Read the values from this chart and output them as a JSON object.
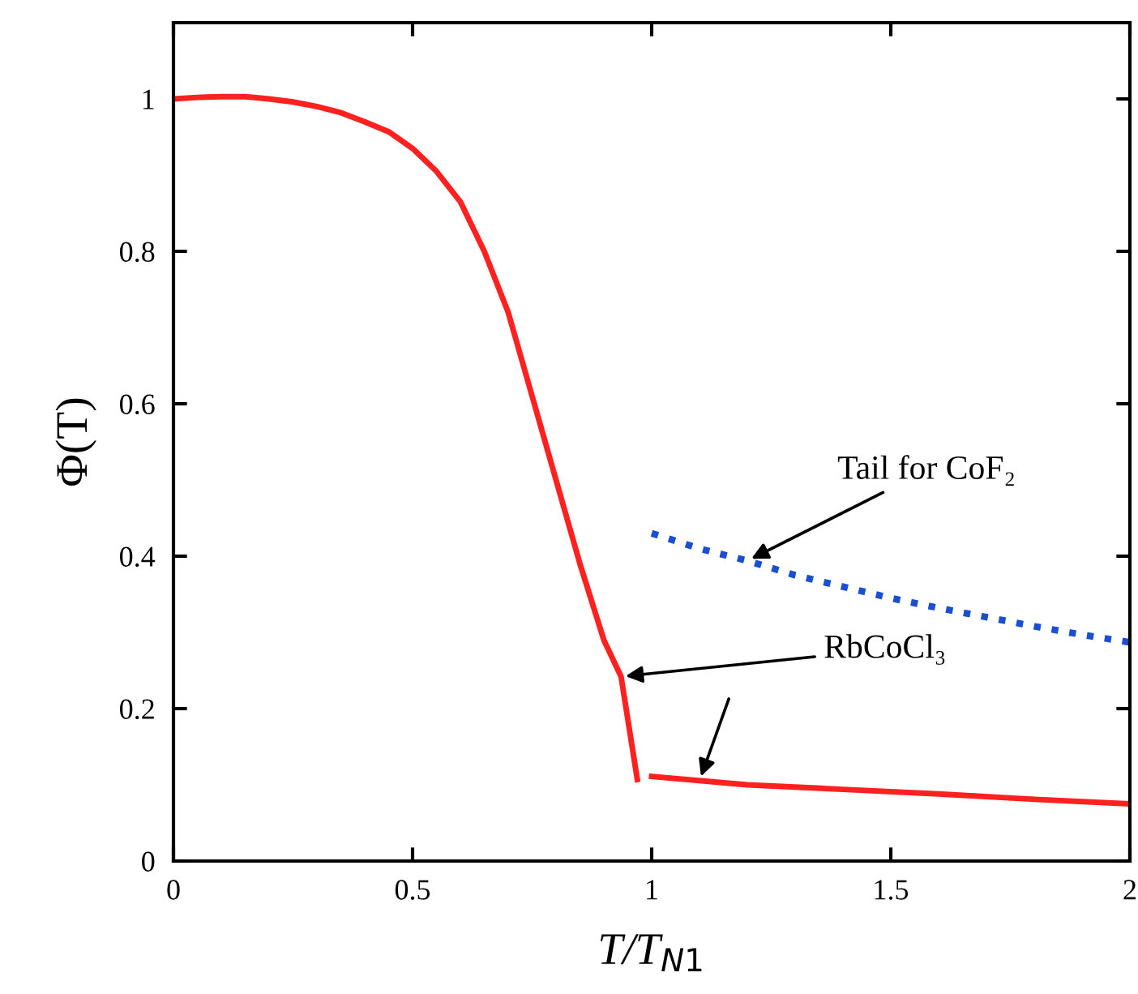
{
  "chart_data": {
    "type": "line",
    "xlabel": "T/T$_{N1}$",
    "ylabel": "Φ(T)",
    "xlim": [
      0,
      2
    ],
    "ylim": [
      0,
      1.1
    ],
    "xticks": [
      0,
      0.5,
      1,
      1.5,
      2
    ],
    "yticks": [
      0,
      0.2,
      0.4,
      0.6,
      0.8,
      1
    ],
    "grid": false,
    "series": [
      {
        "color": "#ff2020",
        "line_style": "solid",
        "x": [
          0,
          0.05,
          0.1,
          0.15,
          0.2,
          0.25,
          0.3,
          0.35,
          0.4,
          0.45,
          0.5,
          0.55,
          0.6,
          0.65,
          0.7,
          0.75,
          0.8,
          0.85,
          0.9,
          0.936,
          0.97
        ],
        "values": [
          1.0,
          1.002,
          1.003,
          1.003,
          1.0,
          0.996,
          0.99,
          0.982,
          0.97,
          0.957,
          0.935,
          0.905,
          0.865,
          0.8,
          0.72,
          0.61,
          0.5,
          0.39,
          0.29,
          0.242,
          0.107
        ]
      },
      {
        "color": "#ff2020",
        "line_style": "solid",
        "x": [
          1.0,
          1.2,
          1.4,
          1.6,
          1.8,
          2.0
        ],
        "values": [
          0.111,
          0.1,
          0.094,
          0.088,
          0.081,
          0.075
        ]
      },
      {
        "color": "#1a4fd0",
        "line_style": "dotted",
        "x": [
          1.0,
          1.1,
          1.2,
          1.3,
          1.4,
          1.5,
          1.6,
          1.7,
          1.8,
          1.9,
          2.0
        ],
        "values": [
          0.43,
          0.41,
          0.394,
          0.375,
          0.36,
          0.345,
          0.332,
          0.32,
          0.308,
          0.297,
          0.287
        ]
      }
    ],
    "annotations": [
      {
        "text": "Tail for CoF₂",
        "x": 1.2,
        "y": 0.394
      },
      {
        "text": "RbCoCl₃",
        "x": 0.936,
        "y": 0.242
      }
    ]
  }
}
